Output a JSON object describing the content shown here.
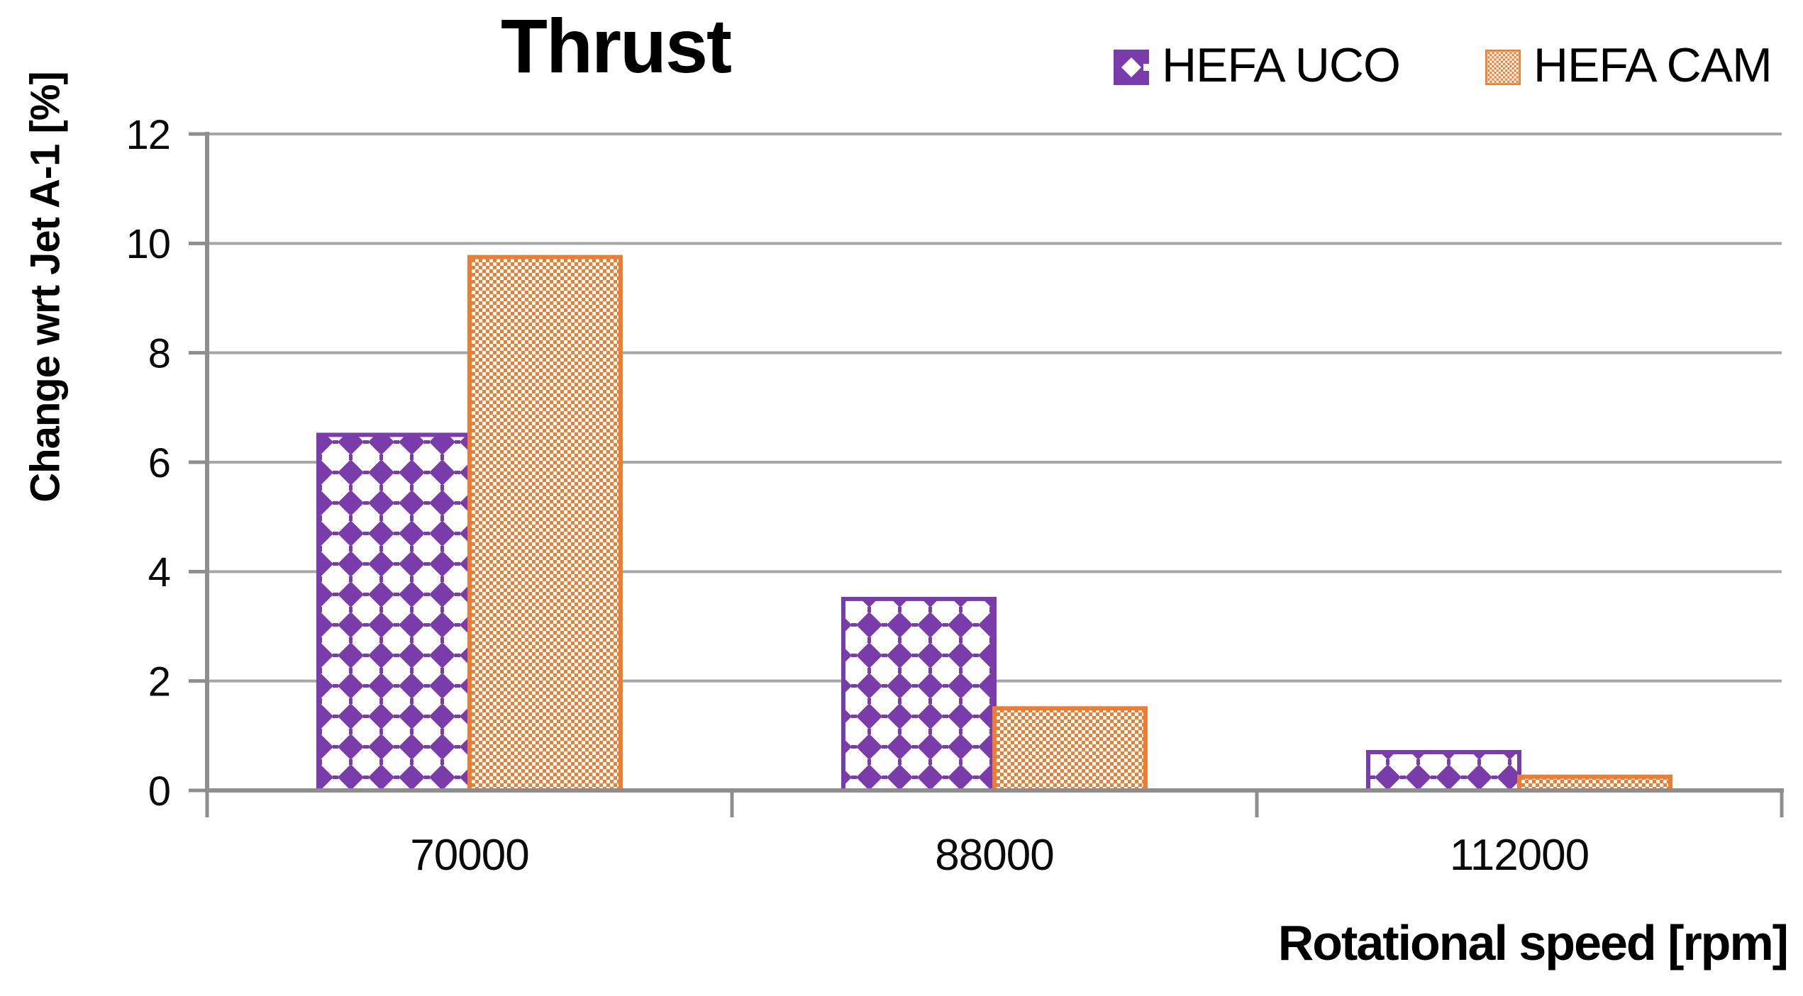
{
  "chart_data": {
    "type": "bar",
    "title": "Thrust",
    "xlabel": "Rotational speed [rpm]",
    "ylabel": "Change wrt Jet A-1 [%]",
    "categories": [
      "70000",
      "88000",
      "112000"
    ],
    "series": [
      {
        "name": "HEFA UCO",
        "values": [
          6.5,
          3.5,
          0.7
        ],
        "color": "#7A3BAB",
        "pattern": "diamond"
      },
      {
        "name": "HEFA CAM",
        "values": [
          9.75,
          1.5,
          0.25
        ],
        "color": "#ED7D31",
        "pattern": "checker"
      }
    ],
    "ylim": [
      0,
      12
    ],
    "yticks": [
      0,
      2,
      4,
      6,
      8,
      10,
      12
    ],
    "grid": true,
    "legend_position": "top-right",
    "colors": {
      "gridline": "#A6A6A6",
      "axis": "#8E8E8E",
      "text": "#0a0a0a",
      "background": "#ffffff"
    }
  }
}
